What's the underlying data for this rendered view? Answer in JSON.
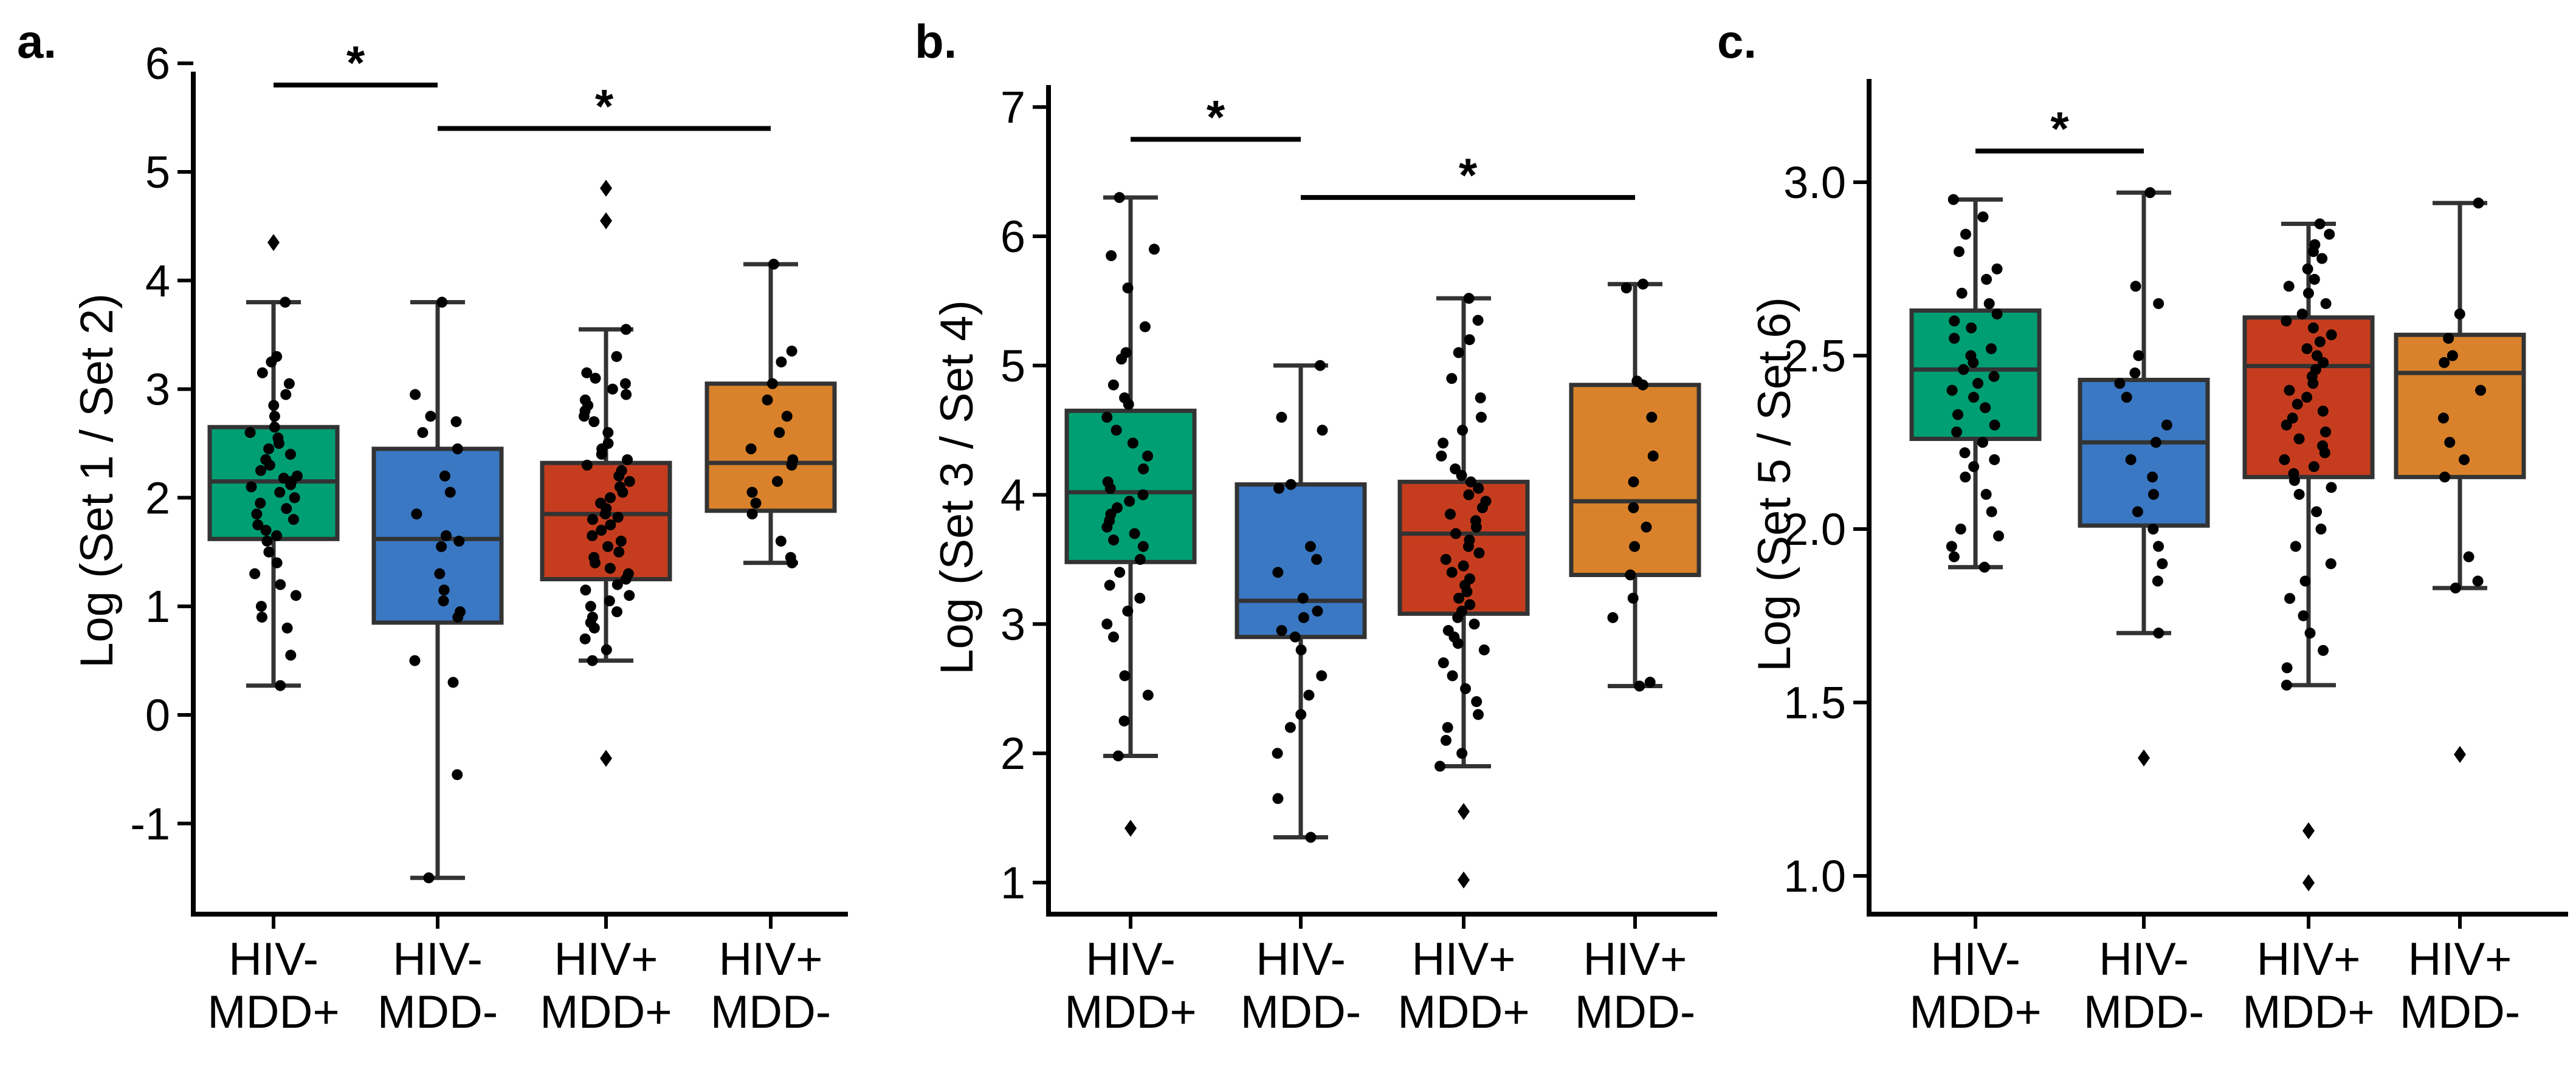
{
  "chart_data": [
    {
      "type": "box",
      "panel_label": "a.",
      "ylabel": "Log (Set 1 / Set 2)",
      "ylim": [
        -1.7,
        6.0
      ],
      "yticks": [
        -1,
        0,
        1,
        2,
        3,
        4,
        5,
        6
      ],
      "ytick_labels": [
        "-1",
        "0",
        "1",
        "2",
        "3",
        "4",
        "5",
        "6"
      ],
      "groups": [
        {
          "line1": "HIV-",
          "line2": "MDD+",
          "color": "#009E73",
          "q1": 1.62,
          "median": 2.15,
          "q3": 2.65,
          "whisker_low": 0.27,
          "whisker_high": 3.8,
          "points": [
            4.35,
            3.8,
            3.3,
            3.25,
            3.15,
            3.05,
            2.95,
            2.85,
            2.75,
            2.65,
            2.6,
            2.55,
            2.5,
            2.45,
            2.4,
            2.35,
            2.3,
            2.25,
            2.2,
            2.18,
            2.15,
            2.12,
            2.1,
            2.05,
            2.0,
            1.95,
            1.9,
            1.85,
            1.8,
            1.75,
            1.7,
            1.65,
            1.6,
            1.5,
            1.4,
            1.3,
            1.2,
            1.1,
            1.0,
            0.9,
            0.8,
            0.55,
            0.27
          ]
        },
        {
          "line1": "HIV-",
          "line2": "MDD-",
          "color": "#3A78C3",
          "q1": 0.85,
          "median": 1.62,
          "q3": 2.45,
          "whisker_low": -1.5,
          "whisker_high": 3.8,
          "points": [
            3.8,
            2.95,
            2.75,
            2.7,
            2.6,
            2.45,
            2.2,
            2.05,
            1.85,
            1.65,
            1.6,
            1.55,
            1.3,
            1.15,
            1.05,
            0.95,
            0.9,
            0.5,
            0.3,
            -0.55,
            -1.5
          ]
        },
        {
          "line1": "HIV+",
          "line2": "MDD+",
          "color": "#C53D1E",
          "q1": 1.25,
          "median": 1.85,
          "q3": 2.32,
          "whisker_low": 0.5,
          "whisker_high": 3.55,
          "points": [
            4.85,
            4.55,
            3.55,
            3.3,
            3.15,
            3.1,
            3.05,
            3.0,
            2.95,
            2.9,
            2.85,
            2.8,
            2.75,
            2.7,
            2.6,
            2.5,
            2.45,
            2.4,
            2.35,
            2.3,
            2.25,
            2.2,
            2.15,
            2.1,
            2.05,
            2.0,
            1.95,
            1.9,
            1.85,
            1.82,
            1.8,
            1.75,
            1.7,
            1.65,
            1.6,
            1.55,
            1.5,
            1.45,
            1.4,
            1.35,
            1.3,
            1.25,
            1.2,
            1.15,
            1.1,
            1.05,
            1.0,
            0.95,
            0.9,
            0.85,
            0.8,
            0.7,
            0.6,
            0.5,
            -0.4
          ]
        },
        {
          "line1": "HIV+",
          "line2": "MDD-",
          "color": "#D9822B",
          "q1": 1.88,
          "median": 2.32,
          "q3": 3.05,
          "whisker_low": 1.4,
          "whisker_high": 4.15,
          "points": [
            4.15,
            3.35,
            3.25,
            3.05,
            2.9,
            2.75,
            2.6,
            2.45,
            2.35,
            2.3,
            2.15,
            2.05,
            1.95,
            1.85,
            1.6,
            1.45,
            1.4
          ]
        }
      ],
      "significance": [
        {
          "from": 0,
          "to": 1,
          "y": 5.8,
          "label": "*"
        },
        {
          "from": 1,
          "to": 3,
          "y": 5.4,
          "label": "*"
        }
      ]
    },
    {
      "type": "box",
      "panel_label": "b.",
      "ylabel": "Log (Set 3 / Set 4)",
      "ylim": [
        0.7,
        7.0
      ],
      "yticks": [
        1,
        2,
        3,
        4,
        5,
        6,
        7
      ],
      "ytick_labels": [
        "1",
        "2",
        "3",
        "4",
        "5",
        "6",
        "7"
      ],
      "groups": [
        {
          "line1": "HIV-",
          "line2": "MDD+",
          "color": "#009E73",
          "q1": 3.48,
          "median": 4.02,
          "q3": 4.65,
          "whisker_low": 1.98,
          "whisker_high": 6.3,
          "points": [
            6.3,
            5.9,
            5.85,
            5.6,
            5.3,
            5.1,
            5.05,
            4.85,
            4.75,
            4.7,
            4.6,
            4.5,
            4.4,
            4.3,
            4.2,
            4.1,
            4.05,
            4.0,
            3.95,
            3.9,
            3.85,
            3.8,
            3.75,
            3.7,
            3.65,
            3.6,
            3.5,
            3.4,
            3.3,
            3.2,
            3.1,
            3.0,
            2.9,
            2.6,
            2.45,
            2.25,
            1.98,
            1.42
          ]
        },
        {
          "line1": "HIV-",
          "line2": "MDD-",
          "color": "#3A78C3",
          "q1": 2.9,
          "median": 3.18,
          "q3": 4.08,
          "whisker_low": 1.35,
          "whisker_high": 5.0,
          "points": [
            5.0,
            4.6,
            4.5,
            4.08,
            4.05,
            3.6,
            3.5,
            3.4,
            3.2,
            3.1,
            3.05,
            2.95,
            2.9,
            2.8,
            2.6,
            2.45,
            2.3,
            2.2,
            2.0,
            1.65,
            1.35
          ]
        },
        {
          "line1": "HIV+",
          "line2": "MDD+",
          "color": "#C53D1E",
          "q1": 3.08,
          "median": 3.7,
          "q3": 4.1,
          "whisker_low": 1.9,
          "whisker_high": 5.52,
          "points": [
            5.52,
            5.35,
            5.2,
            5.1,
            4.9,
            4.75,
            4.6,
            4.5,
            4.4,
            4.3,
            4.2,
            4.15,
            4.1,
            4.05,
            4.0,
            3.95,
            3.9,
            3.85,
            3.8,
            3.75,
            3.7,
            3.65,
            3.6,
            3.55,
            3.5,
            3.45,
            3.4,
            3.35,
            3.3,
            3.25,
            3.2,
            3.15,
            3.1,
            3.05,
            3.0,
            2.95,
            2.9,
            2.85,
            2.8,
            2.7,
            2.6,
            2.5,
            2.4,
            2.3,
            2.2,
            2.1,
            2.0,
            1.9,
            1.55,
            1.02
          ]
        },
        {
          "line1": "HIV+",
          "line2": "MDD-",
          "color": "#D9822B",
          "q1": 3.38,
          "median": 3.95,
          "q3": 4.85,
          "whisker_low": 2.52,
          "whisker_high": 5.63,
          "points": [
            5.63,
            5.6,
            4.88,
            4.85,
            4.6,
            4.3,
            4.1,
            3.9,
            3.75,
            3.6,
            3.38,
            3.2,
            3.05,
            2.55,
            2.52
          ]
        }
      ],
      "significance": [
        {
          "from": 0,
          "to": 1,
          "y": 6.75,
          "label": "*"
        },
        {
          "from": 1,
          "to": 3,
          "y": 6.3,
          "label": "*"
        }
      ]
    },
    {
      "type": "box",
      "panel_label": "c.",
      "ylabel": "Log (Set 5 / Set 6)",
      "ylim": [
        0.88,
        3.3
      ],
      "yticks": [
        1.0,
        1.5,
        2.0,
        2.5,
        3.0
      ],
      "ytick_labels": [
        "1.0",
        "1.5",
        "2.0",
        "2.5",
        "3.0"
      ],
      "groups": [
        {
          "line1": "HIV-",
          "line2": "MDD+",
          "color": "#009E73",
          "q1": 2.26,
          "median": 2.46,
          "q3": 2.63,
          "whisker_low": 1.89,
          "whisker_high": 2.95,
          "points": [
            2.95,
            2.9,
            2.85,
            2.8,
            2.75,
            2.72,
            2.68,
            2.65,
            2.62,
            2.6,
            2.58,
            2.55,
            2.52,
            2.5,
            2.48,
            2.46,
            2.44,
            2.42,
            2.4,
            2.38,
            2.35,
            2.33,
            2.3,
            2.28,
            2.25,
            2.22,
            2.2,
            2.18,
            2.15,
            2.1,
            2.05,
            2.0,
            1.98,
            1.95,
            1.92,
            1.89
          ]
        },
        {
          "line1": "HIV-",
          "line2": "MDD-",
          "color": "#3A78C3",
          "q1": 2.01,
          "median": 2.25,
          "q3": 2.43,
          "whisker_low": 1.7,
          "whisker_high": 2.97,
          "points": [
            2.97,
            2.7,
            2.65,
            2.5,
            2.45,
            2.42,
            2.38,
            2.3,
            2.25,
            2.2,
            2.15,
            2.1,
            2.05,
            2.0,
            1.95,
            1.9,
            1.85,
            1.7,
            1.34
          ]
        },
        {
          "line1": "HIV+",
          "line2": "MDD+",
          "color": "#C53D1E",
          "q1": 2.15,
          "median": 2.47,
          "q3": 2.61,
          "whisker_low": 1.55,
          "whisker_high": 2.88,
          "points": [
            2.88,
            2.85,
            2.82,
            2.8,
            2.78,
            2.75,
            2.72,
            2.7,
            2.68,
            2.65,
            2.62,
            2.6,
            2.58,
            2.56,
            2.54,
            2.52,
            2.5,
            2.48,
            2.46,
            2.44,
            2.42,
            2.4,
            2.38,
            2.36,
            2.34,
            2.32,
            2.3,
            2.28,
            2.26,
            2.24,
            2.22,
            2.2,
            2.18,
            2.16,
            2.14,
            2.12,
            2.1,
            2.05,
            2.0,
            1.95,
            1.9,
            1.85,
            1.8,
            1.75,
            1.7,
            1.65,
            1.6,
            1.55,
            1.13,
            0.98
          ]
        },
        {
          "line1": "HIV+",
          "line2": "MDD-",
          "color": "#D9822B",
          "q1": 2.15,
          "median": 2.45,
          "q3": 2.56,
          "whisker_low": 1.83,
          "whisker_high": 2.94,
          "points": [
            2.94,
            2.62,
            2.55,
            2.5,
            2.48,
            2.4,
            2.32,
            2.25,
            2.2,
            2.15,
            1.92,
            1.85,
            1.83,
            1.35
          ]
        }
      ],
      "significance": [
        {
          "from": 0,
          "to": 1,
          "y": 3.09,
          "label": "*"
        }
      ]
    }
  ]
}
